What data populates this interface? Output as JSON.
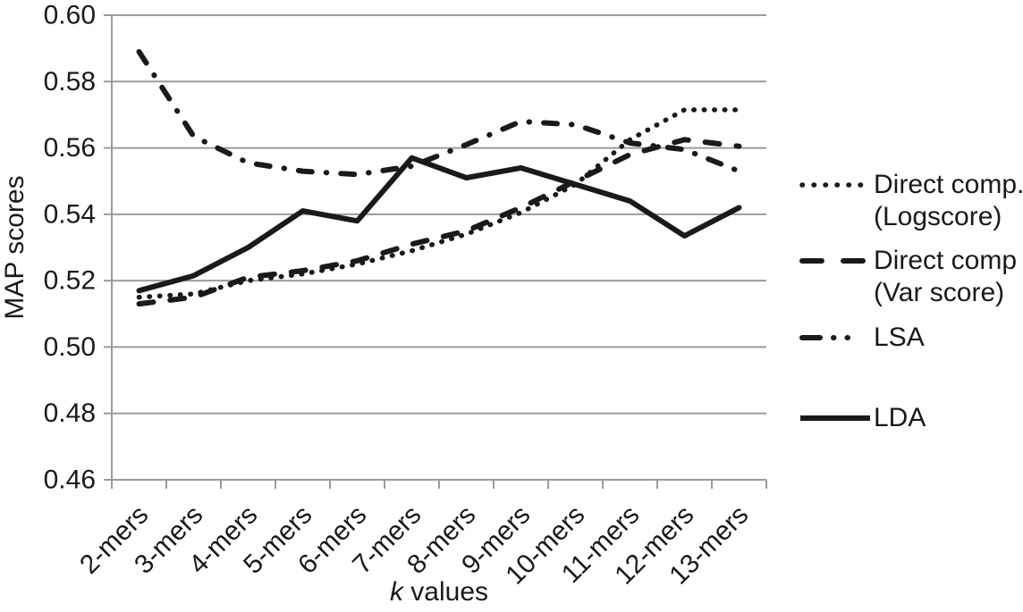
{
  "colors": {
    "background": "#ffffff",
    "line": "#1a1a1a",
    "grid": "#9b9b9b",
    "axis": "#9b9b9b",
    "text": "#1a1a1a"
  },
  "chart_data": {
    "type": "line",
    "title": "",
    "xlabel": "k values",
    "ylabel": "MAP scores",
    "ylim": [
      0.46,
      0.6
    ],
    "ytick_step": 0.02,
    "yticks": [
      "0.46",
      "0.48",
      "0.50",
      "0.52",
      "0.54",
      "0.56",
      "0.58",
      "0.60"
    ],
    "categories": [
      "2-mers",
      "3-mers",
      "4-mers",
      "5-mers",
      "6-mers",
      "7-mers",
      "8-mers",
      "9-mers",
      "10-mers",
      "11-mers",
      "12-mers",
      "13-mers"
    ],
    "grid": "horizontal",
    "legend_position": "right",
    "series": [
      {
        "id": "logscore",
        "name": "Direct comp. (Logscore)",
        "legend_lines": [
          "Direct comp.",
          "(Logscore)"
        ],
        "style": "dotted",
        "values": [
          0.515,
          0.516,
          0.52,
          0.522,
          0.525,
          0.529,
          0.534,
          0.5405,
          0.549,
          0.5625,
          0.5715,
          0.5715
        ]
      },
      {
        "id": "varscore",
        "name": "Direct comp (Var score)",
        "legend_lines": [
          "Direct comp",
          "(Var score)"
        ],
        "style": "dashed",
        "values": [
          0.513,
          0.515,
          0.521,
          0.523,
          0.526,
          0.531,
          0.535,
          0.542,
          0.55,
          0.558,
          0.5625,
          0.5605
        ]
      },
      {
        "id": "lsa",
        "name": "LSA",
        "legend_lines": [
          "LSA"
        ],
        "style": "dashdot",
        "values": [
          0.589,
          0.5635,
          0.5555,
          0.553,
          0.552,
          0.5545,
          0.561,
          0.568,
          0.567,
          0.5615,
          0.5595,
          0.553
        ]
      },
      {
        "id": "lda",
        "name": "LDA",
        "legend_lines": [
          "LDA"
        ],
        "style": "solid",
        "values": [
          0.517,
          0.5215,
          0.53,
          0.541,
          0.538,
          0.557,
          0.551,
          0.554,
          0.549,
          0.544,
          0.5335,
          0.542
        ]
      }
    ]
  }
}
